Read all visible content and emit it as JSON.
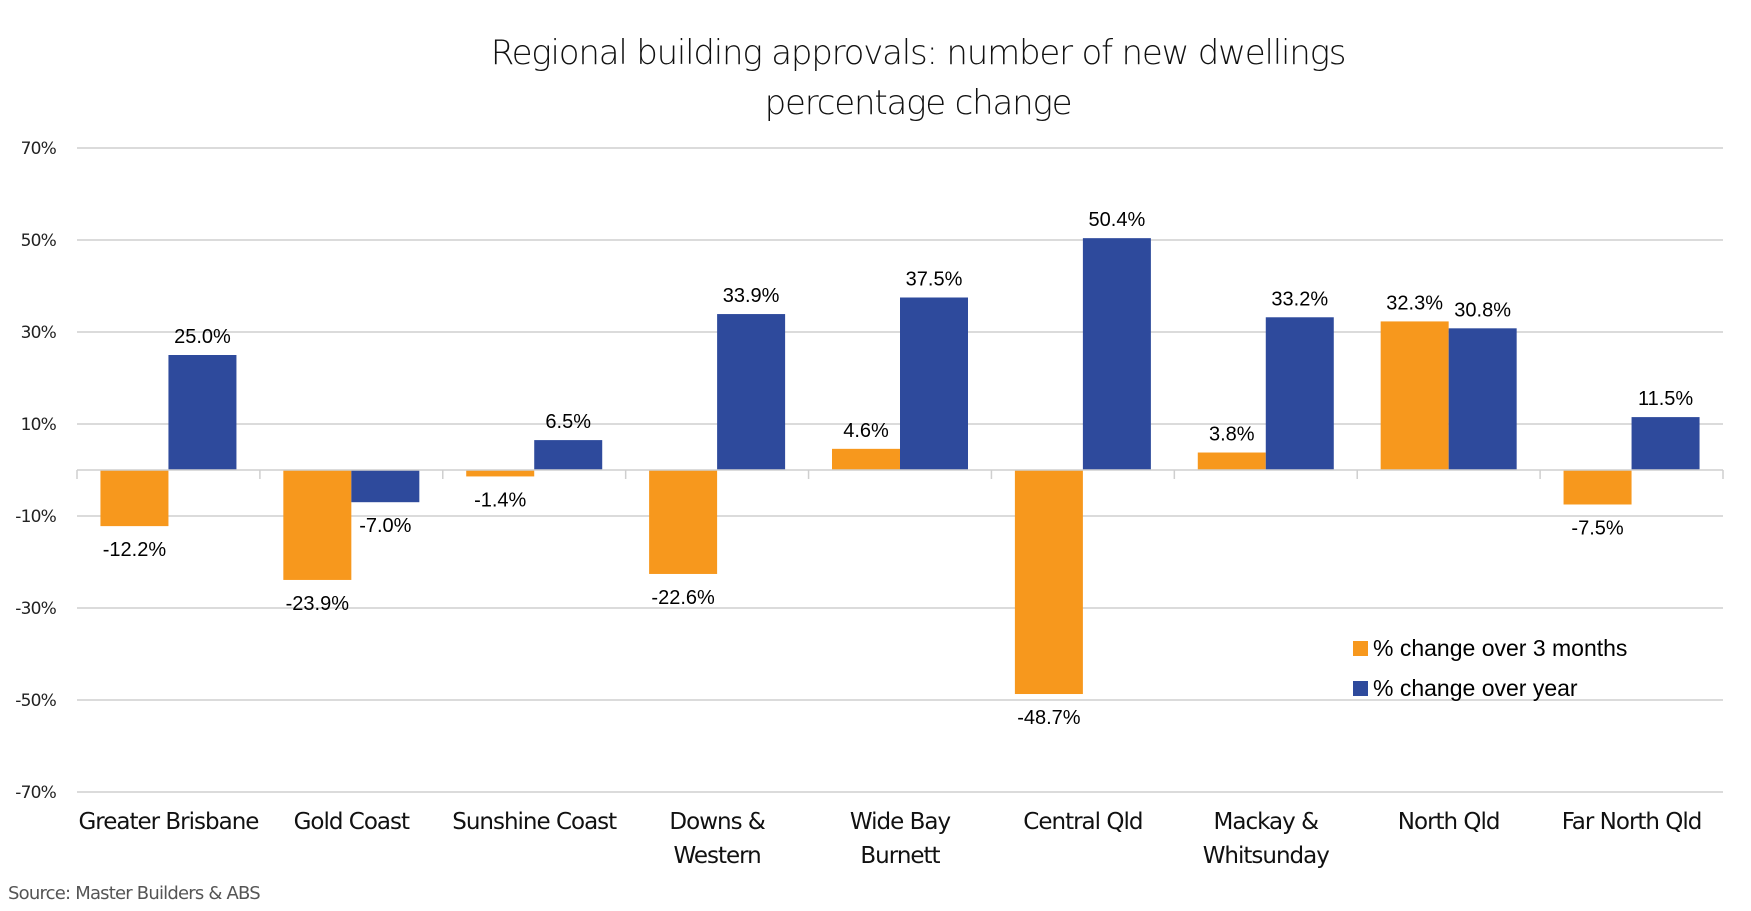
{
  "chart_data": {
    "type": "bar",
    "title": [
      "Regional building approvals: number of new dwellings",
      "percentage change"
    ],
    "xlabel": "",
    "ylabel": "",
    "ylim": [
      -70,
      70
    ],
    "yticks": [
      70,
      50,
      30,
      10,
      -10,
      -30,
      -50,
      -70
    ],
    "ytick_labels": [
      "70%",
      "50%",
      "30%",
      "10%",
      "-10%",
      "-30%",
      "-50%",
      "-70%"
    ],
    "grid": true,
    "legend_position": "bottom-right",
    "categories": [
      [
        "Greater Brisbane"
      ],
      [
        "Gold Coast"
      ],
      [
        "Sunshine Coast"
      ],
      [
        "Downs &",
        "Western"
      ],
      [
        "Wide Bay",
        "Burnett"
      ],
      [
        "Central Qld"
      ],
      [
        "Mackay &",
        "Whitsunday"
      ],
      [
        "North Qld"
      ],
      [
        "Far North Qld"
      ]
    ],
    "series": [
      {
        "name": "% change over 3 months",
        "color": "#F7981D",
        "values": [
          -12.2,
          -23.9,
          -1.4,
          -22.6,
          4.6,
          -48.7,
          3.8,
          32.3,
          -7.5
        ],
        "labels": [
          "-12.2%",
          "-23.9%",
          "-1.4%",
          "-22.6%",
          "4.6%",
          "-48.7%",
          "3.8%",
          "32.3%",
          "-7.5%"
        ]
      },
      {
        "name": "% change over year",
        "color": "#2E4A9C",
        "values": [
          25.0,
          -7.0,
          6.5,
          33.9,
          37.5,
          50.4,
          33.2,
          30.8,
          11.5
        ],
        "labels": [
          "25.0%",
          "-7.0%",
          "6.5%",
          "33.9%",
          "37.5%",
          "50.4%",
          "33.2%",
          "30.8%",
          "11.5%"
        ]
      }
    ],
    "source": "Source: Master Builders & ABS"
  }
}
